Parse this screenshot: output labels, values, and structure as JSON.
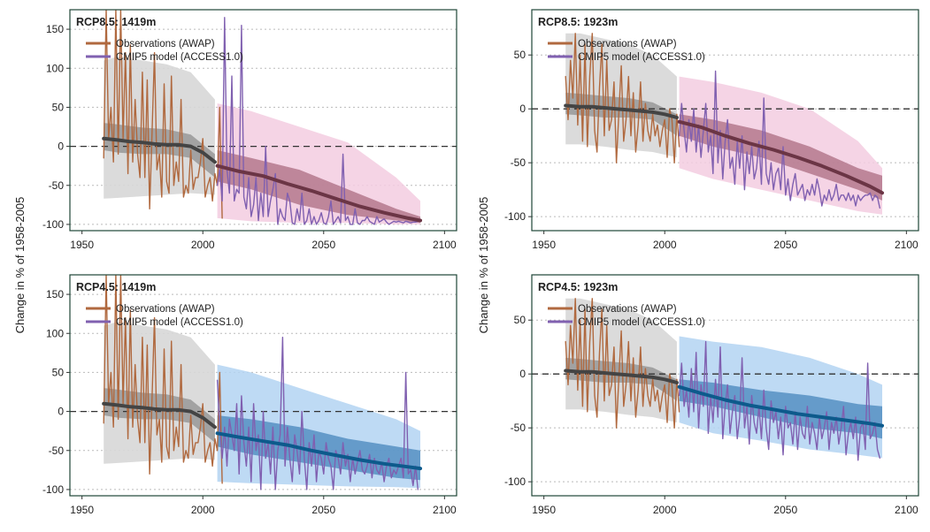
{
  "figure": {
    "ylabel": "Change in % of 1958-2005"
  },
  "colors": {
    "observations": "#b0693f",
    "model": "#8060b0",
    "historical_band_outer": "#d7d7d7",
    "historical_band_inner": "#8f8f8f",
    "historical_median": "#444444",
    "rcp85_band_outer": "#f3cde0",
    "rcp85_band_inner": "#a6657a",
    "rcp85_median": "#6b3545",
    "rcp45_band_outer": "#b3d3f2",
    "rcp45_band_inner": "#3f80b8",
    "rcp45_median": "#0d5a8c",
    "zero_line": "#333333",
    "frame": "#1f4537"
  },
  "chart_data": [
    {
      "type": "line",
      "title": "RCP8.5: 1419m",
      "scenario": "rcp85",
      "xlim": [
        1945,
        2105
      ],
      "ylim": [
        -108,
        175
      ],
      "xticks": [
        1950,
        2000,
        2050,
        2100
      ],
      "yticks": [
        -100,
        -50,
        0,
        50,
        100,
        150
      ],
      "ytick_labels": [
        "-100",
        "-50",
        "0",
        "50",
        "100",
        "150"
      ],
      "legend": {
        "position": "top-left",
        "entries": [
          "Observations (AWAP)",
          "CMIP5 model (ACCESS1.0)"
        ]
      },
      "grid": "horizontal dotted",
      "obs_x_start": 1959,
      "observations": [
        -15,
        175,
        10,
        50,
        -20,
        175,
        -10,
        175,
        10,
        120,
        -35,
        130,
        -20,
        60,
        -10,
        -40,
        95,
        -40,
        85,
        -80,
        20,
        120,
        -30,
        -10,
        -65,
        80,
        -45,
        -60,
        90,
        -50,
        -20,
        -45,
        60,
        -65,
        -50,
        -60,
        -5,
        -55,
        -40,
        -40,
        -20,
        10,
        -65,
        -50,
        -40,
        -70,
        -35,
        -50,
        50,
        -92
      ],
      "model_x_start": 2006,
      "model": [
        -50,
        -30,
        -70,
        165,
        -30,
        -60,
        90,
        -70,
        -55,
        -60,
        155,
        -65,
        -80,
        -40,
        -90,
        -75,
        -40,
        -95,
        -60,
        -90,
        0,
        -90,
        -70,
        -55,
        -35,
        -100,
        -80,
        -90,
        -95,
        -60,
        -70,
        -98,
        -100,
        -80,
        -95,
        -60,
        -100,
        -95,
        -80,
        -100,
        -90,
        -100,
        -95,
        -85,
        -98,
        -100,
        -90,
        -70,
        -100,
        -95,
        -90,
        -98,
        -10,
        -95,
        -90,
        -100,
        -100,
        -80,
        -98,
        -100,
        -95,
        -95,
        -90,
        -96,
        -98,
        -100,
        -90,
        -97,
        -95,
        -93,
        -97,
        -100,
        -98,
        -96,
        -97,
        -96,
        -97,
        -98,
        -96,
        -97,
        -98,
        -97,
        -97,
        -96
      ],
      "hist_band_outer": {
        "x": [
          1959,
          1965,
          1975,
          1985,
          1995,
          2005
        ],
        "upper": [
          110,
          115,
          110,
          105,
          95,
          60
        ],
        "lower": [
          -67,
          -66,
          -64,
          -62,
          -60,
          -62
        ]
      },
      "hist_band_inner": {
        "x": [
          1959,
          1965,
          1975,
          1985,
          1995,
          2005
        ],
        "upper": [
          30,
          28,
          24,
          22,
          15,
          -10
        ],
        "lower": [
          -5,
          -8,
          -10,
          -10,
          -15,
          -40
        ]
      },
      "hist_median": {
        "x": [
          1959,
          1965,
          1970,
          1975,
          1980,
          1985,
          1990,
          1995,
          2000,
          2005
        ],
        "y": [
          10,
          8,
          6,
          5,
          3,
          2,
          2,
          0,
          -8,
          -20
        ]
      },
      "proj_band_outer": {
        "x": [
          2006,
          2020,
          2040,
          2060,
          2080,
          2090
        ],
        "upper": [
          55,
          45,
          25,
          5,
          -40,
          -70
        ],
        "lower": [
          -92,
          -96,
          -98,
          -98,
          -100,
          -100
        ]
      },
      "proj_band_inner": {
        "x": [
          2006,
          2020,
          2040,
          2060,
          2080,
          2090
        ],
        "upper": [
          -5,
          -15,
          -30,
          -55,
          -80,
          -90
        ],
        "lower": [
          -45,
          -55,
          -75,
          -88,
          -95,
          -98
        ]
      },
      "proj_median": {
        "x": [
          2006,
          2015,
          2025,
          2035,
          2045,
          2055,
          2065,
          2075,
          2085,
          2090
        ],
        "y": [
          -25,
          -32,
          -38,
          -48,
          -57,
          -67,
          -77,
          -85,
          -92,
          -95
        ]
      }
    },
    {
      "type": "line",
      "title": "RCP8.5: 1923m",
      "scenario": "rcp85",
      "xlim": [
        1945,
        2105
      ],
      "ylim": [
        -113,
        92
      ],
      "xticks": [
        1950,
        2000,
        2050,
        2100
      ],
      "yticks": [
        -100,
        -50,
        0,
        50
      ],
      "ytick_labels": [
        "-100",
        "-50",
        "0",
        "50"
      ],
      "legend": {
        "position": "top-left",
        "entries": [
          "Observations (AWAP)",
          "CMIP5 model (ACCESS1.0)"
        ]
      },
      "grid": "horizontal dotted",
      "obs_x_start": 1959,
      "observations": [
        30,
        -10,
        45,
        10,
        70,
        -15,
        50,
        -30,
        60,
        -35,
        30,
        70,
        -20,
        -40,
        20,
        60,
        -25,
        45,
        -20,
        -10,
        25,
        -50,
        -5,
        40,
        -30,
        -10,
        30,
        -25,
        15,
        -40,
        -15,
        25,
        -30,
        5,
        -20,
        -30,
        -5,
        -25,
        -15,
        -35,
        -20,
        -10,
        -45,
        0,
        -10,
        -50,
        -5,
        -35
      ],
      "model_x_start": 2006,
      "model": [
        -25,
        5,
        -20,
        -40,
        -10,
        -30,
        0,
        -40,
        -15,
        -45,
        -20,
        5,
        -40,
        -25,
        -60,
        35,
        -50,
        -20,
        -65,
        -30,
        -10,
        -55,
        -45,
        -70,
        -30,
        -55,
        -25,
        -75,
        -40,
        -60,
        -35,
        -65,
        -55,
        -30,
        -70,
        10,
        -60,
        -70,
        -50,
        -75,
        -60,
        -55,
        -75,
        -35,
        -80,
        -65,
        -85,
        -70,
        -60,
        -80,
        -75,
        -70,
        -85,
        -75,
        -80,
        -70,
        -80,
        -65,
        -75,
        -90,
        -80,
        -85,
        -75,
        -85,
        -80,
        -70,
        -85,
        -80,
        -80,
        -85,
        -78,
        -85,
        -80,
        -90,
        -80,
        -85,
        -82,
        -80,
        -80,
        -78,
        -85,
        -80,
        -82,
        -92
      ],
      "hist_band_outer": {
        "x": [
          1959,
          1965,
          1975,
          1985,
          1995,
          2005
        ],
        "upper": [
          70,
          70,
          65,
          60,
          50,
          30
        ],
        "lower": [
          -33,
          -33,
          -35,
          -38,
          -40,
          -45
        ]
      },
      "hist_band_inner": {
        "x": [
          1959,
          1965,
          1975,
          1985,
          1995,
          2005
        ],
        "upper": [
          15,
          14,
          12,
          10,
          6,
          -5
        ],
        "lower": [
          -5,
          -6,
          -8,
          -8,
          -10,
          -25
        ]
      },
      "hist_median": {
        "x": [
          1959,
          1965,
          1970,
          1975,
          1980,
          1985,
          1990,
          1995,
          2000,
          2005
        ],
        "y": [
          3,
          2,
          2,
          1,
          0,
          -1,
          -2,
          -3,
          -5,
          -8
        ]
      },
      "proj_band_outer": {
        "x": [
          2006,
          2020,
          2040,
          2060,
          2080,
          2090
        ],
        "upper": [
          30,
          25,
          15,
          0,
          -30,
          -55
        ],
        "lower": [
          -55,
          -65,
          -75,
          -85,
          -95,
          -98
        ]
      },
      "proj_band_inner": {
        "x": [
          2006,
          2020,
          2040,
          2060,
          2080,
          2090
        ],
        "upper": [
          -5,
          -10,
          -20,
          -35,
          -55,
          -62
        ],
        "lower": [
          -25,
          -35,
          -45,
          -60,
          -75,
          -85
        ]
      },
      "proj_median": {
        "x": [
          2006,
          2015,
          2025,
          2035,
          2045,
          2055,
          2065,
          2075,
          2085,
          2090
        ],
        "y": [
          -12,
          -17,
          -25,
          -32,
          -38,
          -45,
          -53,
          -62,
          -72,
          -78
        ]
      }
    },
    {
      "type": "line",
      "title": "RCP4.5: 1419m",
      "scenario": "rcp45",
      "xlim": [
        1945,
        2105
      ],
      "ylim": [
        -108,
        175
      ],
      "xticks": [
        1950,
        2000,
        2050,
        2100
      ],
      "yticks": [
        -100,
        -50,
        0,
        50,
        100,
        150
      ],
      "ytick_labels": [
        "-100",
        "-50",
        "0",
        "50",
        "100",
        "150"
      ],
      "legend": {
        "position": "top-left",
        "entries": [
          "Observations (AWAP)",
          "CMIP5 model (ACCESS1.0)"
        ]
      },
      "grid": "horizontal dotted",
      "obs_x_start": 1959,
      "observations": [
        -15,
        175,
        10,
        50,
        -20,
        175,
        -10,
        175,
        10,
        120,
        -35,
        130,
        -20,
        60,
        -10,
        -40,
        95,
        -40,
        85,
        -80,
        20,
        120,
        -30,
        -10,
        -65,
        80,
        -45,
        -60,
        90,
        -50,
        -20,
        -45,
        60,
        -65,
        -50,
        -60,
        -5,
        -55,
        -40,
        -40,
        -20,
        10,
        -65,
        -50,
        -40,
        -70,
        -35,
        -50,
        50,
        -92
      ],
      "model_x_start": 2006,
      "model": [
        40,
        -20,
        -60,
        -20,
        -70,
        -10,
        -30,
        -50,
        10,
        -80,
        20,
        -40,
        -70,
        -20,
        -90,
        10,
        -50,
        -30,
        -100,
        0,
        -60,
        -40,
        -80,
        -20,
        -100,
        -50,
        -30,
        95,
        -70,
        -20,
        -60,
        -90,
        -30,
        -50,
        -80,
        0,
        -60,
        -100,
        -40,
        -70,
        -30,
        -90,
        -50,
        -60,
        -80,
        -40,
        -60,
        -70,
        -100,
        -50,
        -60,
        -80,
        -40,
        -70,
        -55,
        -90,
        -60,
        -80,
        -65,
        -50,
        -75,
        -80,
        -70,
        -55,
        -85,
        -60,
        -75,
        -80,
        -65,
        -90,
        -70,
        -60,
        -85,
        -75,
        -80,
        -70,
        -60,
        -85,
        50,
        -80,
        -75,
        -95,
        -70,
        -100
      ],
      "hist_band_outer": {
        "x": [
          1959,
          1965,
          1975,
          1985,
          1995,
          2005
        ],
        "upper": [
          110,
          115,
          110,
          105,
          95,
          60
        ],
        "lower": [
          -67,
          -66,
          -64,
          -62,
          -60,
          -62
        ]
      },
      "hist_band_inner": {
        "x": [
          1959,
          1965,
          1975,
          1985,
          1995,
          2005
        ],
        "upper": [
          30,
          28,
          24,
          22,
          15,
          -10
        ],
        "lower": [
          -5,
          -8,
          -10,
          -10,
          -15,
          -40
        ]
      },
      "hist_median": {
        "x": [
          1959,
          1965,
          1970,
          1975,
          1980,
          1985,
          1990,
          1995,
          2000,
          2005
        ],
        "y": [
          10,
          8,
          6,
          5,
          3,
          2,
          2,
          0,
          -8,
          -20
        ]
      },
      "proj_band_outer": {
        "x": [
          2006,
          2020,
          2040,
          2060,
          2080,
          2090
        ],
        "upper": [
          60,
          50,
          30,
          10,
          -10,
          -25
        ],
        "lower": [
          -90,
          -92,
          -94,
          -96,
          -97,
          -98
        ]
      },
      "proj_band_inner": {
        "x": [
          2006,
          2020,
          2040,
          2060,
          2080,
          2090
        ],
        "upper": [
          -5,
          -10,
          -20,
          -35,
          -45,
          -50
        ],
        "lower": [
          -45,
          -55,
          -65,
          -75,
          -85,
          -88
        ]
      },
      "proj_median": {
        "x": [
          2006,
          2015,
          2025,
          2035,
          2045,
          2055,
          2065,
          2075,
          2085,
          2090
        ],
        "y": [
          -28,
          -33,
          -38,
          -43,
          -50,
          -56,
          -62,
          -67,
          -71,
          -73
        ]
      }
    },
    {
      "type": "line",
      "title": "RCP4.5: 1923m",
      "scenario": "rcp45",
      "xlim": [
        1945,
        2105
      ],
      "ylim": [
        -113,
        92
      ],
      "xticks": [
        1950,
        2000,
        2050,
        2100
      ],
      "yticks": [
        -100,
        -50,
        0,
        50
      ],
      "ytick_labels": [
        "-100",
        "-50",
        "0",
        "50"
      ],
      "legend": {
        "position": "top-left",
        "entries": [
          "Observations (AWAP)",
          "CMIP5 model (ACCESS1.0)"
        ]
      },
      "grid": "horizontal dotted",
      "obs_x_start": 1959,
      "observations": [
        30,
        -10,
        45,
        10,
        70,
        -15,
        50,
        -30,
        60,
        -35,
        30,
        70,
        -20,
        -40,
        20,
        60,
        -25,
        45,
        -20,
        -10,
        25,
        -50,
        -5,
        40,
        -30,
        -10,
        30,
        -25,
        15,
        -40,
        -15,
        25,
        -30,
        5,
        -20,
        -30,
        -5,
        -25,
        -15,
        -35,
        -20,
        -10,
        -45,
        0,
        -10,
        -50,
        -5,
        -35
      ],
      "model_x_start": 2006,
      "model": [
        -20,
        10,
        -30,
        -15,
        -40,
        5,
        -35,
        20,
        -50,
        -10,
        -30,
        30,
        -55,
        -20,
        -45,
        -5,
        -40,
        25,
        -60,
        -30,
        -10,
        -55,
        -35,
        -20,
        -60,
        -40,
        15,
        -50,
        -30,
        -65,
        -20,
        -45,
        -55,
        -30,
        -60,
        -15,
        -50,
        -70,
        -25,
        -45,
        -35,
        -60,
        -40,
        -75,
        -30,
        -50,
        -45,
        -65,
        -35,
        -70,
        -40,
        -55,
        -60,
        -30,
        -65,
        -45,
        -55,
        -70,
        -40,
        -60,
        -50,
        -35,
        -70,
        -45,
        -55,
        -40,
        -65,
        -50,
        -30,
        -75,
        -55,
        -45,
        -60,
        -40,
        -80,
        -50,
        -45,
        -70,
        10,
        -60,
        -55,
        -45,
        -70,
        -78
      ],
      "hist_band_outer": {
        "x": [
          1959,
          1965,
          1975,
          1985,
          1995,
          2005
        ],
        "upper": [
          70,
          70,
          65,
          60,
          50,
          30
        ],
        "lower": [
          -33,
          -33,
          -35,
          -38,
          -40,
          -45
        ]
      },
      "hist_band_inner": {
        "x": [
          1959,
          1965,
          1975,
          1985,
          1995,
          2005
        ],
        "upper": [
          15,
          14,
          12,
          10,
          6,
          -5
        ],
        "lower": [
          -5,
          -6,
          -8,
          -8,
          -10,
          -25
        ]
      },
      "hist_median": {
        "x": [
          1959,
          1965,
          1970,
          1975,
          1980,
          1985,
          1990,
          1995,
          2000,
          2005
        ],
        "y": [
          3,
          2,
          2,
          1,
          0,
          -1,
          -2,
          -3,
          -5,
          -8
        ]
      },
      "proj_band_outer": {
        "x": [
          2006,
          2020,
          2040,
          2060,
          2080,
          2090
        ],
        "upper": [
          35,
          30,
          25,
          15,
          0,
          -10
        ],
        "lower": [
          -45,
          -55,
          -62,
          -70,
          -75,
          -78
        ]
      },
      "proj_band_inner": {
        "x": [
          2006,
          2020,
          2040,
          2060,
          2080,
          2090
        ],
        "upper": [
          -5,
          -8,
          -15,
          -20,
          -28,
          -30
        ],
        "lower": [
          -25,
          -30,
          -40,
          -50,
          -55,
          -60
        ]
      },
      "proj_median": {
        "x": [
          2006,
          2015,
          2025,
          2035,
          2045,
          2055,
          2065,
          2075,
          2085,
          2090
        ],
        "y": [
          -12,
          -18,
          -24,
          -29,
          -33,
          -37,
          -40,
          -43,
          -46,
          -48
        ]
      }
    }
  ]
}
